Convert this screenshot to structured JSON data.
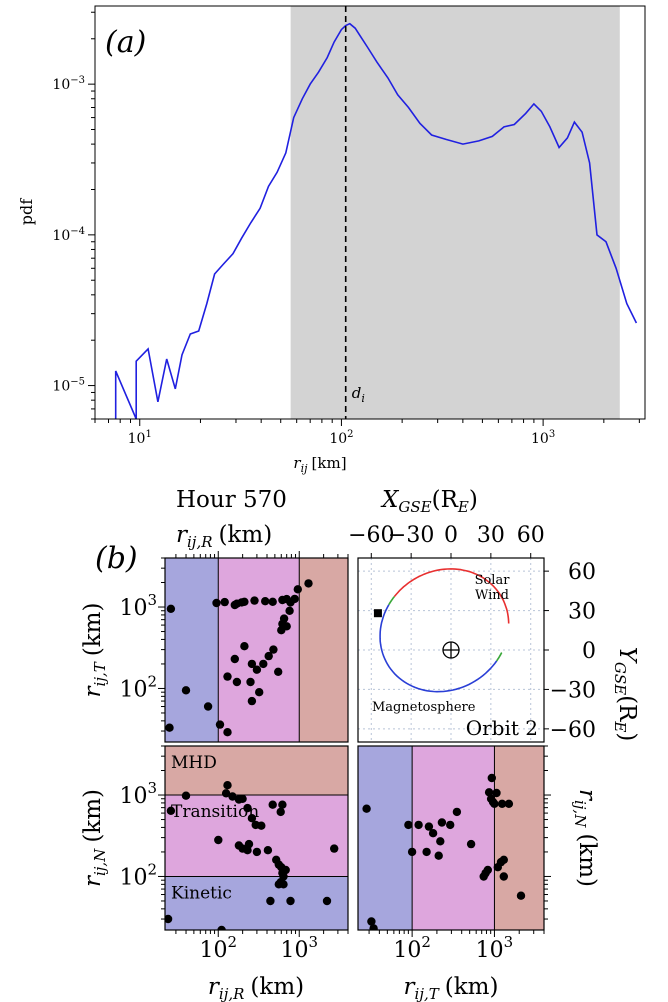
{
  "chart_data": [
    {
      "type": "line",
      "panel_label": "(a)",
      "xlabel_html": "r_ij [km]",
      "xlabel_main": "r",
      "xlabel_sub": "ij",
      "xlabel_unit": "[km]",
      "ylabel": "pdf",
      "xscale": "log",
      "yscale": "log",
      "xlim": [
        6,
        3200
      ],
      "ylim": [
        6e-06,
        0.0033
      ],
      "x_ticks": [
        {
          "value": 10,
          "base": "10",
          "exp": "1"
        },
        {
          "value": 100,
          "base": "10",
          "exp": "2"
        },
        {
          "value": 1000,
          "base": "10",
          "exp": "3"
        }
      ],
      "y_ticks": [
        {
          "value": 1e-05,
          "base": "10",
          "exp": "−5"
        },
        {
          "value": 0.0001,
          "base": "10",
          "exp": "−4"
        },
        {
          "value": 0.001,
          "base": "10",
          "exp": "−3"
        }
      ],
      "shaded_region": [
        56,
        2400
      ],
      "shade_color": "#d3d3d3",
      "line_color": "#2020e0",
      "vline": {
        "x": 105,
        "label_main": "d",
        "label_sub": "i"
      },
      "series": [
        {
          "x": [
            7.6,
            7.6,
            9.6,
            9.6,
            11.0,
            12.3,
            13.6,
            15.0,
            16.2,
            17.8,
            19.6,
            21.5,
            23.5,
            26.0,
            29.0,
            32.0,
            35.5,
            39.5,
            43.5,
            48.0,
            53.0,
            58.0,
            64.0,
            70.0,
            77.0,
            85.0,
            92.0,
            100.0,
            105.0,
            110.0,
            117.0,
            125.0,
            135.0,
            150.0,
            170.0,
            190.0,
            215.0,
            245.0,
            280.0,
            330.0,
            400.0,
            480.0,
            560.0,
            640.0,
            720.0,
            820.0,
            900.0,
            980.0,
            1080.0,
            1200.0,
            1320.0,
            1430.0,
            1560.0,
            1700.0,
            1850.0,
            2050.0,
            2300.0,
            2600.0,
            2900.0
          ],
          "y": [
            6e-06,
            1.25e-05,
            6e-06,
            1.45e-05,
            1.75e-05,
            7.8e-06,
            1.5e-05,
            9.5e-06,
            1.6e-05,
            2.2e-05,
            2.3e-05,
            3.5e-05,
            5.5e-05,
            6.4e-05,
            7.5e-05,
            9.5e-05,
            0.00012,
            0.00015,
            0.00021,
            0.00026,
            0.00035,
            0.0006,
            0.0008,
            0.001,
            0.0012,
            0.0015,
            0.0019,
            0.0023,
            0.00245,
            0.00252,
            0.00235,
            0.00205,
            0.00175,
            0.0014,
            0.0011,
            0.00085,
            0.0007,
            0.00055,
            0.00046,
            0.00043,
            0.0004,
            0.00042,
            0.00045,
            0.00052,
            0.00054,
            0.00064,
            0.00074,
            0.00066,
            0.00052,
            0.00038,
            0.00044,
            0.00056,
            0.00048,
            0.0003,
            0.0001,
            9e-05,
            6e-05,
            3.5e-05,
            2.6e-05
          ]
        }
      ]
    },
    {
      "type": "scatter",
      "panel_label": "(b)",
      "title": "Hour 570",
      "top_axis_label": {
        "main": "r",
        "sub": "ij,R",
        "unit": "(km)"
      },
      "colors": {
        "kinetic": "#a6a6dd",
        "transition": "#dea6dd",
        "mhd": "#d8a8a4"
      },
      "panels": {
        "top_left": {
          "xaxis": "R",
          "yaxis": "T",
          "ylabel": {
            "main": "r",
            "sub": "ij,T",
            "unit": "(km)"
          },
          "xlim": [
            22,
            4000
          ],
          "ylim": [
            22,
            4000
          ],
          "regions": [
            {
              "name": "kinetic",
              "axis": "x",
              "range": [
                22,
                100
              ]
            },
            {
              "name": "transition",
              "axis": "x",
              "range": [
                100,
                1000
              ]
            },
            {
              "name": "mhd",
              "axis": "x",
              "range": [
                1000,
                4000
              ]
            }
          ],
          "points": [
            [
              26,
              950
            ],
            [
              40,
              95
            ],
            [
              25,
              33
            ],
            [
              75,
              60
            ],
            [
              95,
              1120
            ],
            [
              105,
              36
            ],
            [
              130,
              29
            ],
            [
              160,
              1060
            ],
            [
              170,
              1100
            ],
            [
              195,
              1140
            ],
            [
              210,
              1160
            ],
            [
              120,
              1150
            ],
            [
              280,
              1200
            ],
            [
              380,
              1180
            ],
            [
              470,
              1160
            ],
            [
              620,
              1220
            ],
            [
              700,
              1250
            ],
            [
              780,
              1140
            ],
            [
              960,
              1650
            ],
            [
              1300,
              1950
            ],
            [
              880,
              1260
            ],
            [
              760,
              900
            ],
            [
              650,
              720
            ],
            [
              620,
              620
            ],
            [
              700,
              580
            ],
            [
              600,
              520
            ],
            [
              480,
              300
            ],
            [
              420,
              250
            ],
            [
              360,
              200
            ],
            [
              300,
              170
            ],
            [
              260,
              200
            ],
            [
              210,
              330
            ],
            [
              160,
              230
            ],
            [
              130,
              140
            ],
            [
              170,
              120
            ],
            [
              250,
              120
            ],
            [
              320,
              90
            ],
            [
              260,
              70
            ],
            [
              550,
              160
            ]
          ]
        },
        "bottom_left": {
          "xaxis": "R",
          "yaxis": "N",
          "ylabel": {
            "main": "r",
            "sub": "ij,N",
            "unit": "(km)"
          },
          "xlim": [
            22,
            4000
          ],
          "ylim": [
            22,
            4000
          ],
          "regions": [
            {
              "name": "kinetic",
              "axis": "y",
              "range": [
                22,
                100
              ],
              "label": "Kinetic"
            },
            {
              "name": "transition",
              "axis": "y",
              "range": [
                100,
                1000
              ],
              "label": "Transition"
            },
            {
              "name": "mhd",
              "axis": "y",
              "range": [
                1000,
                4000
              ],
              "label": "MHD"
            }
          ],
          "points": [
            [
              26,
              640
            ],
            [
              40,
              980
            ],
            [
              125,
              1050
            ],
            [
              130,
              1320
            ],
            [
              150,
              960
            ],
            [
              180,
              880
            ],
            [
              200,
              900
            ],
            [
              230,
              690
            ],
            [
              260,
              520
            ],
            [
              290,
              430
            ],
            [
              340,
              420
            ],
            [
              470,
              760
            ],
            [
              590,
              620
            ],
            [
              620,
              760
            ],
            [
              180,
              240
            ],
            [
              200,
              220
            ],
            [
              240,
              250
            ],
            [
              300,
              200
            ],
            [
              520,
              160
            ],
            [
              560,
              140
            ],
            [
              600,
              130
            ],
            [
              620,
              110
            ],
            [
              680,
              120
            ],
            [
              640,
              100
            ],
            [
              590,
              85
            ],
            [
              560,
              80
            ],
            [
              640,
              80
            ],
            [
              410,
              210
            ],
            [
              100,
              280
            ],
            [
              230,
              210
            ],
            [
              110,
              22
            ],
            [
              2700,
              220
            ],
            [
              24,
              30
            ],
            [
              440,
              50
            ],
            [
              780,
              50
            ],
            [
              2200,
              50
            ]
          ]
        },
        "bottom_right": {
          "xaxis": "T",
          "yaxis": "N",
          "ylabel": {
            "main": "r",
            "sub": "ij,N",
            "unit": "(km)"
          },
          "xlim": [
            22,
            4000
          ],
          "ylim": [
            22,
            4000
          ],
          "regions": [
            {
              "name": "kinetic",
              "axis": "x",
              "range": [
                22,
                100
              ]
            },
            {
              "name": "transition",
              "axis": "x",
              "range": [
                100,
                1000
              ]
            },
            {
              "name": "mhd",
              "axis": "x",
              "range": [
                1000,
                4000
              ]
            }
          ],
          "points": [
            [
              28,
              680
            ],
            [
              32,
              28
            ],
            [
              34,
              23
            ],
            [
              90,
              430
            ],
            [
              120,
              430
            ],
            [
              160,
              410
            ],
            [
              180,
              340
            ],
            [
              230,
              460
            ],
            [
              290,
              430
            ],
            [
              350,
              620
            ],
            [
              860,
              1080
            ],
            [
              910,
              900
            ],
            [
              960,
              820
            ],
            [
              1000,
              780
            ],
            [
              1060,
              1060
            ],
            [
              1240,
              780
            ],
            [
              1500,
              780
            ],
            [
              930,
              1620
            ],
            [
              100,
              200
            ],
            [
              150,
              200
            ],
            [
              210,
              180
            ],
            [
              220,
              270
            ],
            [
              520,
              250
            ],
            [
              830,
              120
            ],
            [
              780,
              110
            ],
            [
              740,
              100
            ],
            [
              1300,
              160
            ],
            [
              1200,
              150
            ],
            [
              1100,
              130
            ],
            [
              1300,
              100
            ],
            [
              2100,
              58
            ]
          ]
        },
        "orbit": {
          "title_x": {
            "main": "X",
            "sub": "GSE",
            "unit": "(R",
            "unit_sub": "E",
            "unit_close": ")"
          },
          "title_y": {
            "main": "Y",
            "sub": "GSE",
            "unit": "(R",
            "unit_sub": "E",
            "unit_close": ")"
          },
          "xlim": [
            -70,
            70
          ],
          "ylim": [
            -70,
            70
          ],
          "x_ticks": [
            "−60",
            "−30",
            "0",
            "30",
            "60"
          ],
          "x_tick_values": [
            -60,
            -30,
            0,
            30,
            60
          ],
          "y_ticks": [
            "60",
            "30",
            "0",
            "−30",
            "−60"
          ],
          "y_tick_values": [
            60,
            30,
            0,
            -30,
            -60
          ],
          "solar_wind_label_1": "Solar",
          "solar_wind_label_2": "Wind",
          "magnetosphere_label": "Magnetosphere",
          "orbit_label": "Orbit 2",
          "solar_wind_color": "#e83030",
          "magnetosphere_color": "#2a3fd6",
          "spacecraft_position": [
            -55,
            28
          ],
          "earth_position": [
            0,
            0
          ],
          "orbit_ellipse": {
            "cx": -5,
            "cy": 15,
            "rx": 50,
            "ry": 45,
            "tilt_deg": 35
          }
        }
      },
      "tick_labels": [
        {
          "value": 100,
          "base": "10",
          "exp": "2"
        },
        {
          "value": 1000,
          "base": "10",
          "exp": "3"
        }
      ]
    }
  ]
}
